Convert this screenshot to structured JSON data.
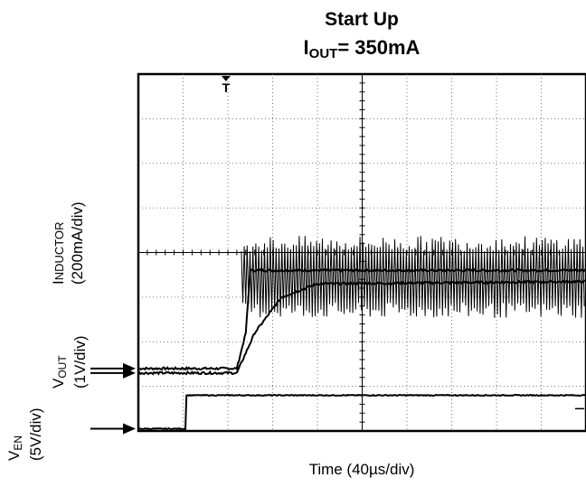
{
  "chart_data": {
    "type": "line",
    "title": "Start Up",
    "subtitle": {
      "prefix": "I",
      "sub": "OUT",
      "suffix": "= 350mA"
    },
    "xlabel": "Time (40µs/div)",
    "x_divisions": 10,
    "y_divisions": 8,
    "grid": true,
    "trigger_marker": "T",
    "channels": [
      {
        "name": "INDUCTOR",
        "label_prefix": "I",
        "label_smallcaps": "NDUCTOR",
        "scale": "(200mA/div)",
        "zero_div": 1.4,
        "segments": [
          {
            "t_div": 0.0,
            "value_div": 1.4
          },
          {
            "t_div": 2.2,
            "value_div": 1.4
          },
          {
            "t_div": 2.4,
            "value_div": 2.2
          },
          {
            "t_div": 2.5,
            "value_div": 3.6
          },
          {
            "t_div": 10.0,
            "value_div": 3.6
          }
        ],
        "ripple_band_div": [
          2.7,
          4.2
        ],
        "ripple_start_div": 2.3
      },
      {
        "name": "VOUT",
        "label_prefix": "V",
        "label_sub": "OUT",
        "scale": "(1V/div)",
        "zero_div": 1.3,
        "segments": [
          {
            "t_div": 0.0,
            "value_div": 1.3
          },
          {
            "t_div": 2.2,
            "value_div": 1.3
          },
          {
            "t_div": 2.6,
            "value_div": 2.2
          },
          {
            "t_div": 3.2,
            "value_div": 3.0
          },
          {
            "t_div": 4.0,
            "value_div": 3.3
          },
          {
            "t_div": 10.0,
            "value_div": 3.35
          }
        ]
      },
      {
        "name": "VEN",
        "label_prefix": "V",
        "label_sub": "EN",
        "scale": "(5V/div)",
        "zero_div": 0.05,
        "segments": [
          {
            "t_div": 0.0,
            "value_div": 0.05
          },
          {
            "t_div": 1.05,
            "value_div": 0.05
          },
          {
            "t_div": 1.05,
            "value_div": 0.8
          },
          {
            "t_div": 10.0,
            "value_div": 0.8
          }
        ]
      }
    ]
  }
}
